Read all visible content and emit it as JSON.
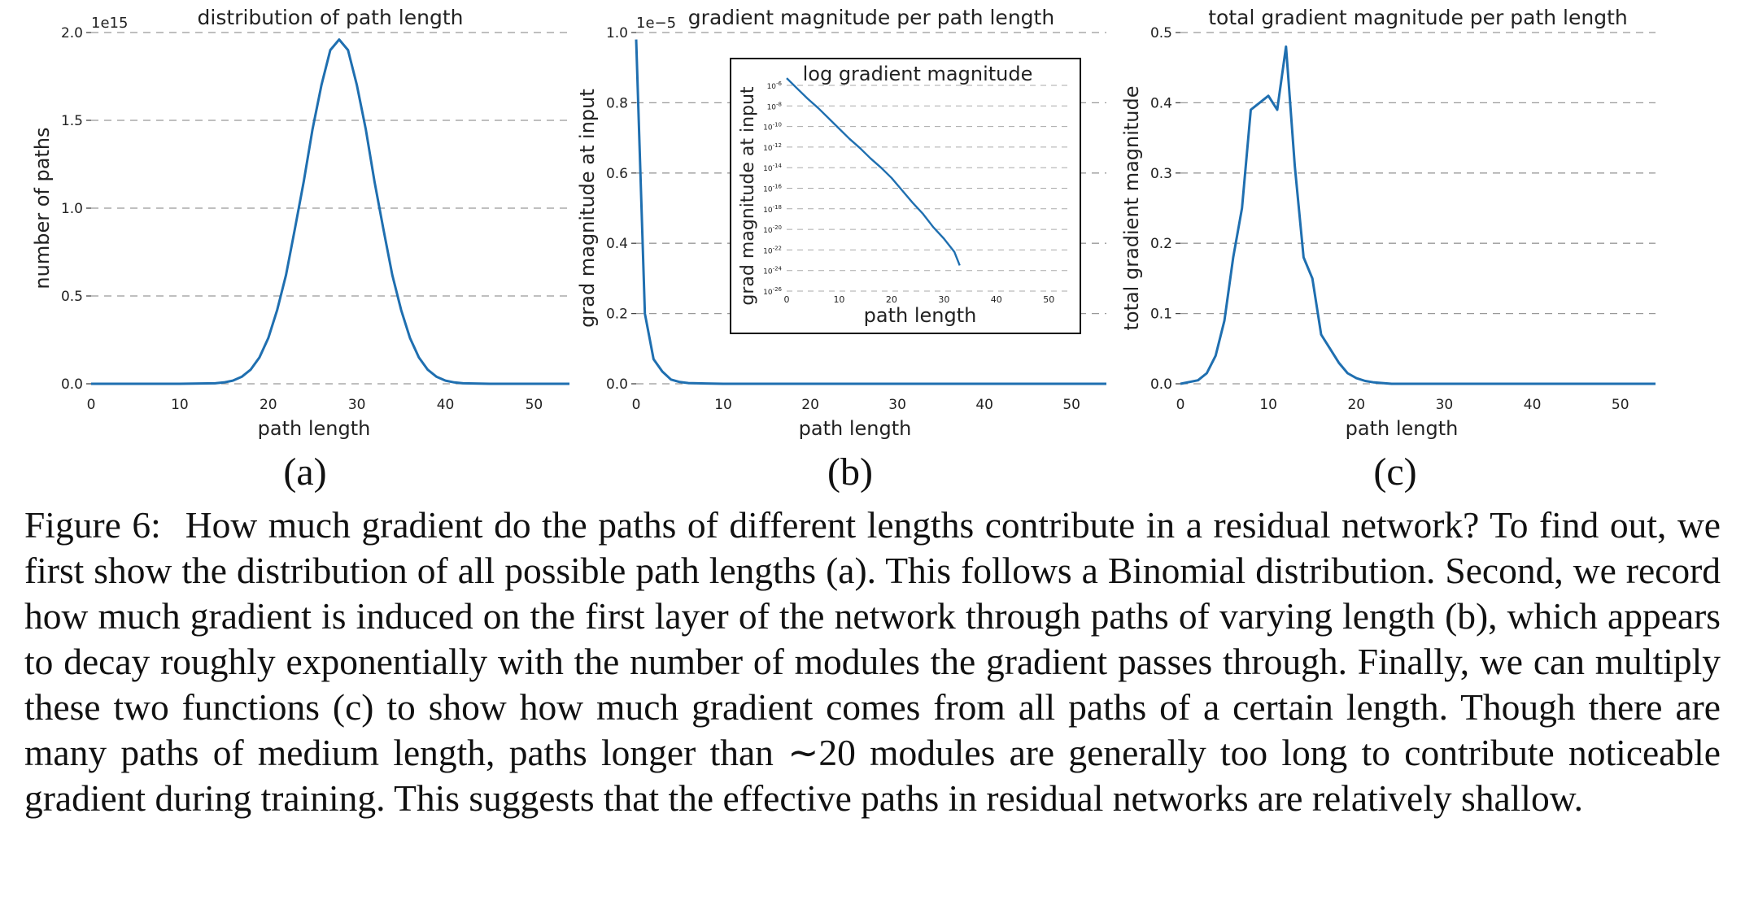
{
  "figure": {
    "panels": [
      "(a)",
      "(b)",
      "(c)"
    ],
    "caption_label": "Figure 6:",
    "caption_text": "How much gradient do the paths of different lengths contribute in a residual network? To find out, we first show the distribution of all possible path lengths (a). This follows a Binomial distribution. Second, we record how much gradient is induced on the first layer of the network through paths of varying length (b), which appears to decay roughly exponentially with the number of modules the gradient passes through. Finally, we can multiply these two functions (c) to show how much gradient comes from all paths of a certain length. Though there are many paths of medium length, paths longer than ∼20 modules are generally too long to contribute noticeable gradient during training. This suggests that the effective paths in residual networks are relatively shallow."
  },
  "chart_data": [
    {
      "type": "line",
      "title": "distribution of path length",
      "xlabel": "path length",
      "ylabel": "number of paths",
      "offset_label": "1e15",
      "xlim": [
        0,
        54
      ],
      "ylim": [
        0,
        2.0
      ],
      "xticks": [
        "0",
        "10",
        "20",
        "30",
        "40",
        "50"
      ],
      "yticks": [
        "0.0",
        "0.5",
        "1.0",
        "1.5",
        "2.0"
      ],
      "grid": true,
      "color": "#1f6fb0",
      "x": [
        0,
        5,
        10,
        14,
        15,
        16,
        17,
        18,
        19,
        20,
        21,
        22,
        23,
        24,
        25,
        26,
        27,
        28,
        29,
        30,
        31,
        32,
        33,
        34,
        35,
        36,
        37,
        38,
        39,
        40,
        41,
        42,
        45,
        50,
        54
      ],
      "y": [
        0,
        0,
        0,
        0.003,
        0.008,
        0.018,
        0.04,
        0.08,
        0.15,
        0.26,
        0.42,
        0.62,
        0.88,
        1.15,
        1.45,
        1.7,
        1.9,
        1.96,
        1.9,
        1.7,
        1.45,
        1.15,
        0.88,
        0.62,
        0.42,
        0.26,
        0.15,
        0.08,
        0.04,
        0.018,
        0.008,
        0.003,
        0,
        0,
        0
      ]
    },
    {
      "type": "line",
      "title": "gradient magnitude per path length",
      "xlabel": "path length",
      "ylabel": "grad magnitude at input",
      "offset_label": "1e−5",
      "xlim": [
        0,
        54
      ],
      "ylim": [
        0,
        1.0
      ],
      "xticks": [
        "0",
        "10",
        "20",
        "30",
        "40",
        "50"
      ],
      "yticks": [
        "0.0",
        "0.2",
        "0.4",
        "0.6",
        "0.8",
        "1.0"
      ],
      "grid": true,
      "color": "#1f6fb0",
      "x": [
        0,
        1,
        2,
        3,
        4,
        5,
        6,
        8,
        10,
        15,
        20,
        30,
        40,
        54
      ],
      "y": [
        0.98,
        0.2,
        0.07,
        0.035,
        0.012,
        0.005,
        0.002,
        0.001,
        0,
        0,
        0,
        0,
        0,
        0
      ],
      "inset": {
        "title": "log gradient magnitude",
        "xlabel": "path length",
        "ylabel": "grad magnitude at input",
        "xlim": [
          0,
          54
        ],
        "ylim_exp": [
          -26,
          -6
        ],
        "xticks": [
          "0",
          "10",
          "20",
          "30",
          "40",
          "50"
        ],
        "ytick_exponents": [
          "-6",
          "-8",
          "-10",
          "-12",
          "-14",
          "-16",
          "-18",
          "-20",
          "-22",
          "-24",
          "-26"
        ],
        "ytick_base": "10",
        "x": [
          0,
          2,
          4,
          6,
          8,
          10,
          12,
          14,
          16,
          18,
          20,
          22,
          24,
          26,
          28,
          30,
          32,
          33
        ],
        "log10_y": [
          -5.3,
          -6.3,
          -7.3,
          -8.2,
          -9.2,
          -10.2,
          -11.2,
          -12.1,
          -13.1,
          -14.0,
          -15.0,
          -16.2,
          -17.4,
          -18.5,
          -19.8,
          -20.9,
          -22.2,
          -23.5
        ]
      }
    },
    {
      "type": "line",
      "title": "total gradient magnitude per path length",
      "xlabel": "path length",
      "ylabel": "total gradient magnitude",
      "xlim": [
        0,
        54
      ],
      "ylim": [
        0,
        0.5
      ],
      "xticks": [
        "0",
        "10",
        "20",
        "30",
        "40",
        "50"
      ],
      "yticks": [
        "0.0",
        "0.1",
        "0.2",
        "0.3",
        "0.4",
        "0.5"
      ],
      "grid": true,
      "color": "#1f6fb0",
      "x": [
        0,
        2,
        3,
        4,
        5,
        6,
        7,
        8,
        9,
        10,
        11,
        12,
        13,
        14,
        15,
        16,
        17,
        18,
        19,
        20,
        21,
        22,
        23,
        24,
        26,
        30,
        40,
        54
      ],
      "y": [
        0,
        0.005,
        0.015,
        0.04,
        0.09,
        0.18,
        0.25,
        0.39,
        0.4,
        0.41,
        0.39,
        0.48,
        0.31,
        0.18,
        0.15,
        0.07,
        0.05,
        0.03,
        0.015,
        0.008,
        0.004,
        0.002,
        0.001,
        0,
        0,
        0,
        0,
        0
      ]
    }
  ]
}
